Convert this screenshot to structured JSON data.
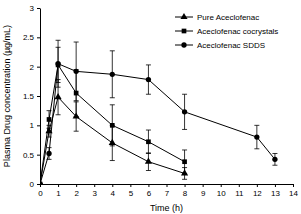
{
  "chart_data": {
    "type": "line",
    "x_label": "Time (h)",
    "y_label": "Plasma Drug concentration (µg/mL)",
    "xlim": [
      0,
      14
    ],
    "xticks": [
      0,
      1,
      2,
      3,
      4,
      5,
      6,
      7,
      8,
      9,
      10,
      11,
      12,
      13,
      14
    ],
    "ylim": [
      0,
      3
    ],
    "yticks": [
      0,
      0.5,
      1,
      1.5,
      2,
      2.5,
      3
    ],
    "legend": "upper right",
    "series": [
      {
        "name": "Pure Aceclofenac",
        "color": "#000000",
        "marker": "triangle",
        "x": [
          0,
          0.5,
          1,
          2,
          4,
          6,
          8
        ],
        "values": [
          0,
          0.9,
          1.48,
          1.15,
          0.7,
          0.38,
          0.18
        ],
        "errors": [
          0,
          0.1,
          0.3,
          0.25,
          0.3,
          0.15,
          0.1
        ]
      },
      {
        "name": "Aceclofenac cocrystals",
        "color": "#000000",
        "marker": "square",
        "x": [
          0,
          0.5,
          1,
          2,
          4,
          6,
          8
        ],
        "values": [
          0,
          1.1,
          2.03,
          1.55,
          1.0,
          0.72,
          0.38
        ],
        "errors": [
          0,
          0.15,
          0.3,
          0.4,
          0.35,
          0.2,
          0.2
        ]
      },
      {
        "name": "Aceclofenac SDDS",
        "color": "#000000",
        "marker": "circle",
        "x": [
          0,
          0.5,
          1,
          2,
          4,
          6,
          8,
          12,
          13
        ],
        "values": [
          0,
          0.52,
          2.05,
          1.92,
          1.87,
          1.78,
          1.23,
          0.8,
          0.42
        ],
        "errors": [
          0,
          0.1,
          0.4,
          0.5,
          0.4,
          0.25,
          0.3,
          0.2,
          0.1
        ]
      }
    ]
  }
}
